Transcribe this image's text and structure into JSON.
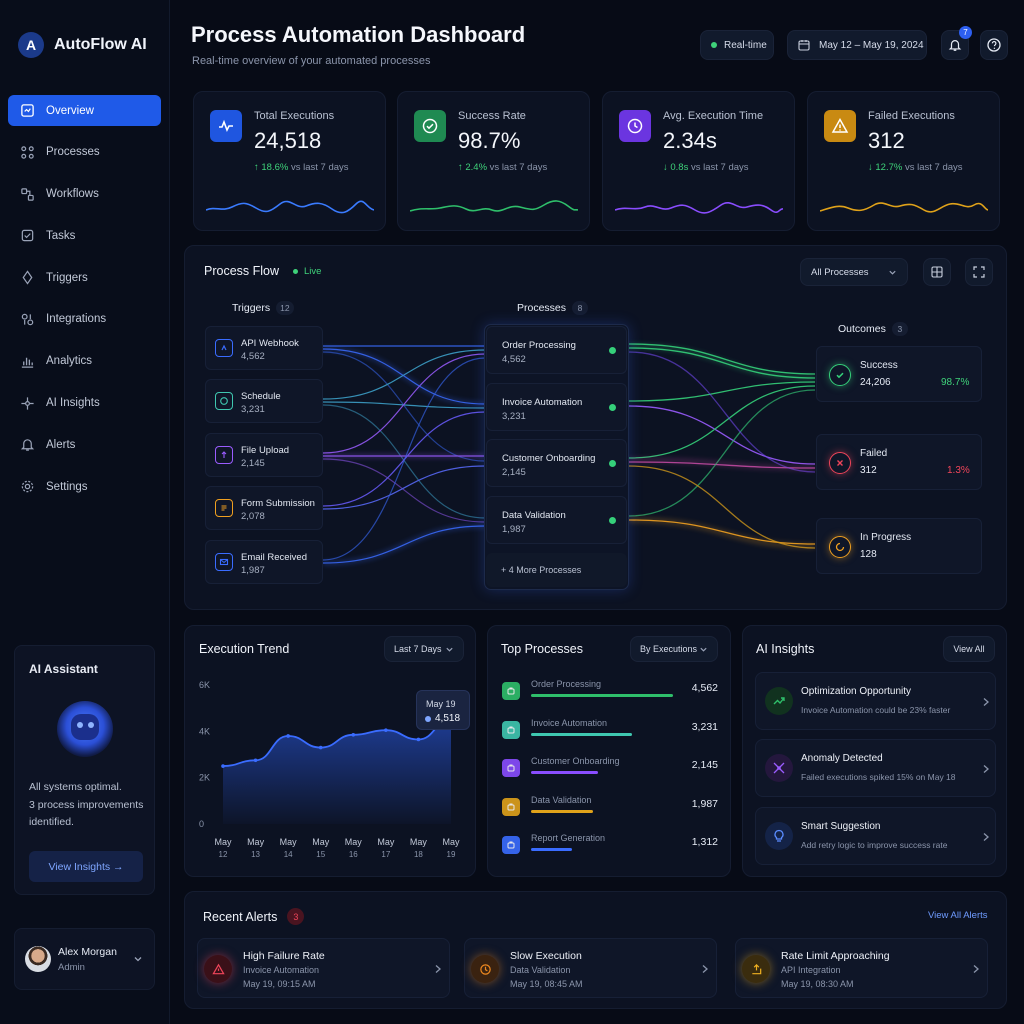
{
  "app": {
    "name": "AutoFlow AI",
    "logo_letter": "A"
  },
  "sidebar": {
    "items": [
      {
        "label": "Overview",
        "icon": "overview-icon",
        "active": true
      },
      {
        "label": "Processes",
        "icon": "processes-icon"
      },
      {
        "label": "Workflows",
        "icon": "workflows-icon"
      },
      {
        "label": "Tasks",
        "icon": "tasks-icon"
      },
      {
        "label": "Triggers",
        "icon": "triggers-icon"
      },
      {
        "label": "Integrations",
        "icon": "integrations-icon"
      },
      {
        "label": "Analytics",
        "icon": "analytics-icon"
      },
      {
        "label": "AI Insights",
        "icon": "ai-insights-icon"
      },
      {
        "label": "Alerts",
        "icon": "bell-icon"
      },
      {
        "label": "Settings",
        "icon": "gear-icon"
      }
    ],
    "assistant": {
      "title": "AI Assistant",
      "message_line1": "All systems optimal.",
      "message_line2": "3 process improvements",
      "message_line3": "identified.",
      "button": "View Insights →"
    },
    "user": {
      "name": "Alex Morgan",
      "role": "Admin"
    }
  },
  "header": {
    "title": "Process Automation Dashboard",
    "subtitle": "Real-time overview of your automated processes",
    "realtime": "Real-time",
    "date_range": "May 12 – May 19, 2024",
    "notification_count": "7"
  },
  "stats": [
    {
      "label": "Total Executions",
      "value": "24,518",
      "delta": "↑ 18.6%",
      "delta_suffix": " vs last 7 days",
      "color": "#3a7bff",
      "icon": "pulse-icon"
    },
    {
      "label": "Success Rate",
      "value": "98.7%",
      "delta": "↑ 2.4%",
      "delta_suffix": " vs last 7 days",
      "color": "#2fbf6b",
      "icon": "check-circle-icon"
    },
    {
      "label": "Avg. Execution Time",
      "value": "2.34s",
      "delta": "↓ 0.8s",
      "delta_suffix": " vs last 7 days",
      "color": "#8a4dff",
      "icon": "clock-icon"
    },
    {
      "label": "Failed Executions",
      "value": "312",
      "delta": "↓ 12.7%",
      "delta_suffix": " vs last 7 days",
      "color": "#e0a21a",
      "icon": "warning-icon"
    }
  ],
  "flow": {
    "title": "Process Flow",
    "live": "Live",
    "filter": "All Processes",
    "triggers_label": "Triggers",
    "triggers_count": "12",
    "processes_label": "Processes",
    "processes_count": "8",
    "outcomes_label": "Outcomes",
    "outcomes_count": "3",
    "triggers": [
      {
        "name": "API Webhook",
        "value": "4,562",
        "color": "#3a6cff"
      },
      {
        "name": "Schedule",
        "value": "3,231",
        "color": "#3fc7b0"
      },
      {
        "name": "File Upload",
        "value": "2,145",
        "color": "#9a5cff"
      },
      {
        "name": "Form Submission",
        "value": "2,078",
        "color": "#f0a020"
      },
      {
        "name": "Email Received",
        "value": "1,987",
        "color": "#3a6cff"
      }
    ],
    "processes": [
      {
        "name": "Order Processing",
        "value": "4,562"
      },
      {
        "name": "Invoice Automation",
        "value": "3,231"
      },
      {
        "name": "Customer Onboarding",
        "value": "2,145"
      },
      {
        "name": "Data Validation",
        "value": "1,987"
      }
    ],
    "more": "+ 4 More Processes",
    "outcomes": [
      {
        "name": "Success",
        "value": "24,206",
        "pct": "98.7%",
        "color": "#35d07a"
      },
      {
        "name": "Failed",
        "value": "312",
        "pct": "1.3%",
        "color": "#f0455a"
      },
      {
        "name": "In Progress",
        "value": "128",
        "pct": "",
        "color": "#f0a020"
      }
    ]
  },
  "trend": {
    "title": "Execution Trend",
    "range": "Last 7 Days",
    "tooltip_date": "May 19",
    "tooltip_value": "4,518"
  },
  "chart_data": {
    "type": "area",
    "ylim": [
      0,
      6000
    ],
    "yticks": [
      "6K",
      "4K",
      "2K",
      "0"
    ],
    "x_line1": [
      "May",
      "May",
      "May",
      "May",
      "May",
      "May",
      "May",
      "May"
    ],
    "x_line2": [
      "12",
      "13",
      "14",
      "15",
      "16",
      "17",
      "18",
      "19"
    ],
    "values": [
      2500,
      2750,
      3800,
      3300,
      3850,
      4050,
      3650,
      4518
    ]
  },
  "top_processes": {
    "title": "Top Processes",
    "sort": "By Executions",
    "items": [
      {
        "name": "Order Processing",
        "value": "4,562",
        "fraction": 1.0,
        "color": "#2fbf6b"
      },
      {
        "name": "Invoice Automation",
        "value": "3,231",
        "fraction": 0.708,
        "color": "#3fc7b0"
      },
      {
        "name": "Customer Onboarding",
        "value": "2,145",
        "fraction": 0.47,
        "color": "#8a4dff"
      },
      {
        "name": "Data Validation",
        "value": "1,987",
        "fraction": 0.436,
        "color": "#e0a21a"
      },
      {
        "name": "Report Generation",
        "value": "1,312",
        "fraction": 0.288,
        "color": "#3a6cff"
      }
    ]
  },
  "ai_insights": {
    "title": "AI Insights",
    "view_all": "View All",
    "items": [
      {
        "title": "Optimization Opportunity",
        "desc": "Invoice Automation could be 23% faster",
        "color": "#2fbf6b"
      },
      {
        "title": "Anomaly Detected",
        "desc": "Failed executions spiked 15% on May 18",
        "color": "#9a5cff"
      },
      {
        "title": "Smart Suggestion",
        "desc": "Add retry logic to improve success rate",
        "color": "#3a6cff"
      }
    ]
  },
  "alerts": {
    "title": "Recent Alerts",
    "count": "3",
    "view_all": "View All Alerts",
    "items": [
      {
        "title": "High Failure Rate",
        "source": "Invoice Automation",
        "time": "May 19, 09:15 AM",
        "color": "#f0455a"
      },
      {
        "title": "Slow Execution",
        "source": "Data Validation",
        "time": "May 19, 08:45 AM",
        "color": "#f08a20"
      },
      {
        "title": "Rate Limit Approaching",
        "source": "API Integration",
        "time": "May 19, 08:30 AM",
        "color": "#f0b020"
      }
    ]
  }
}
